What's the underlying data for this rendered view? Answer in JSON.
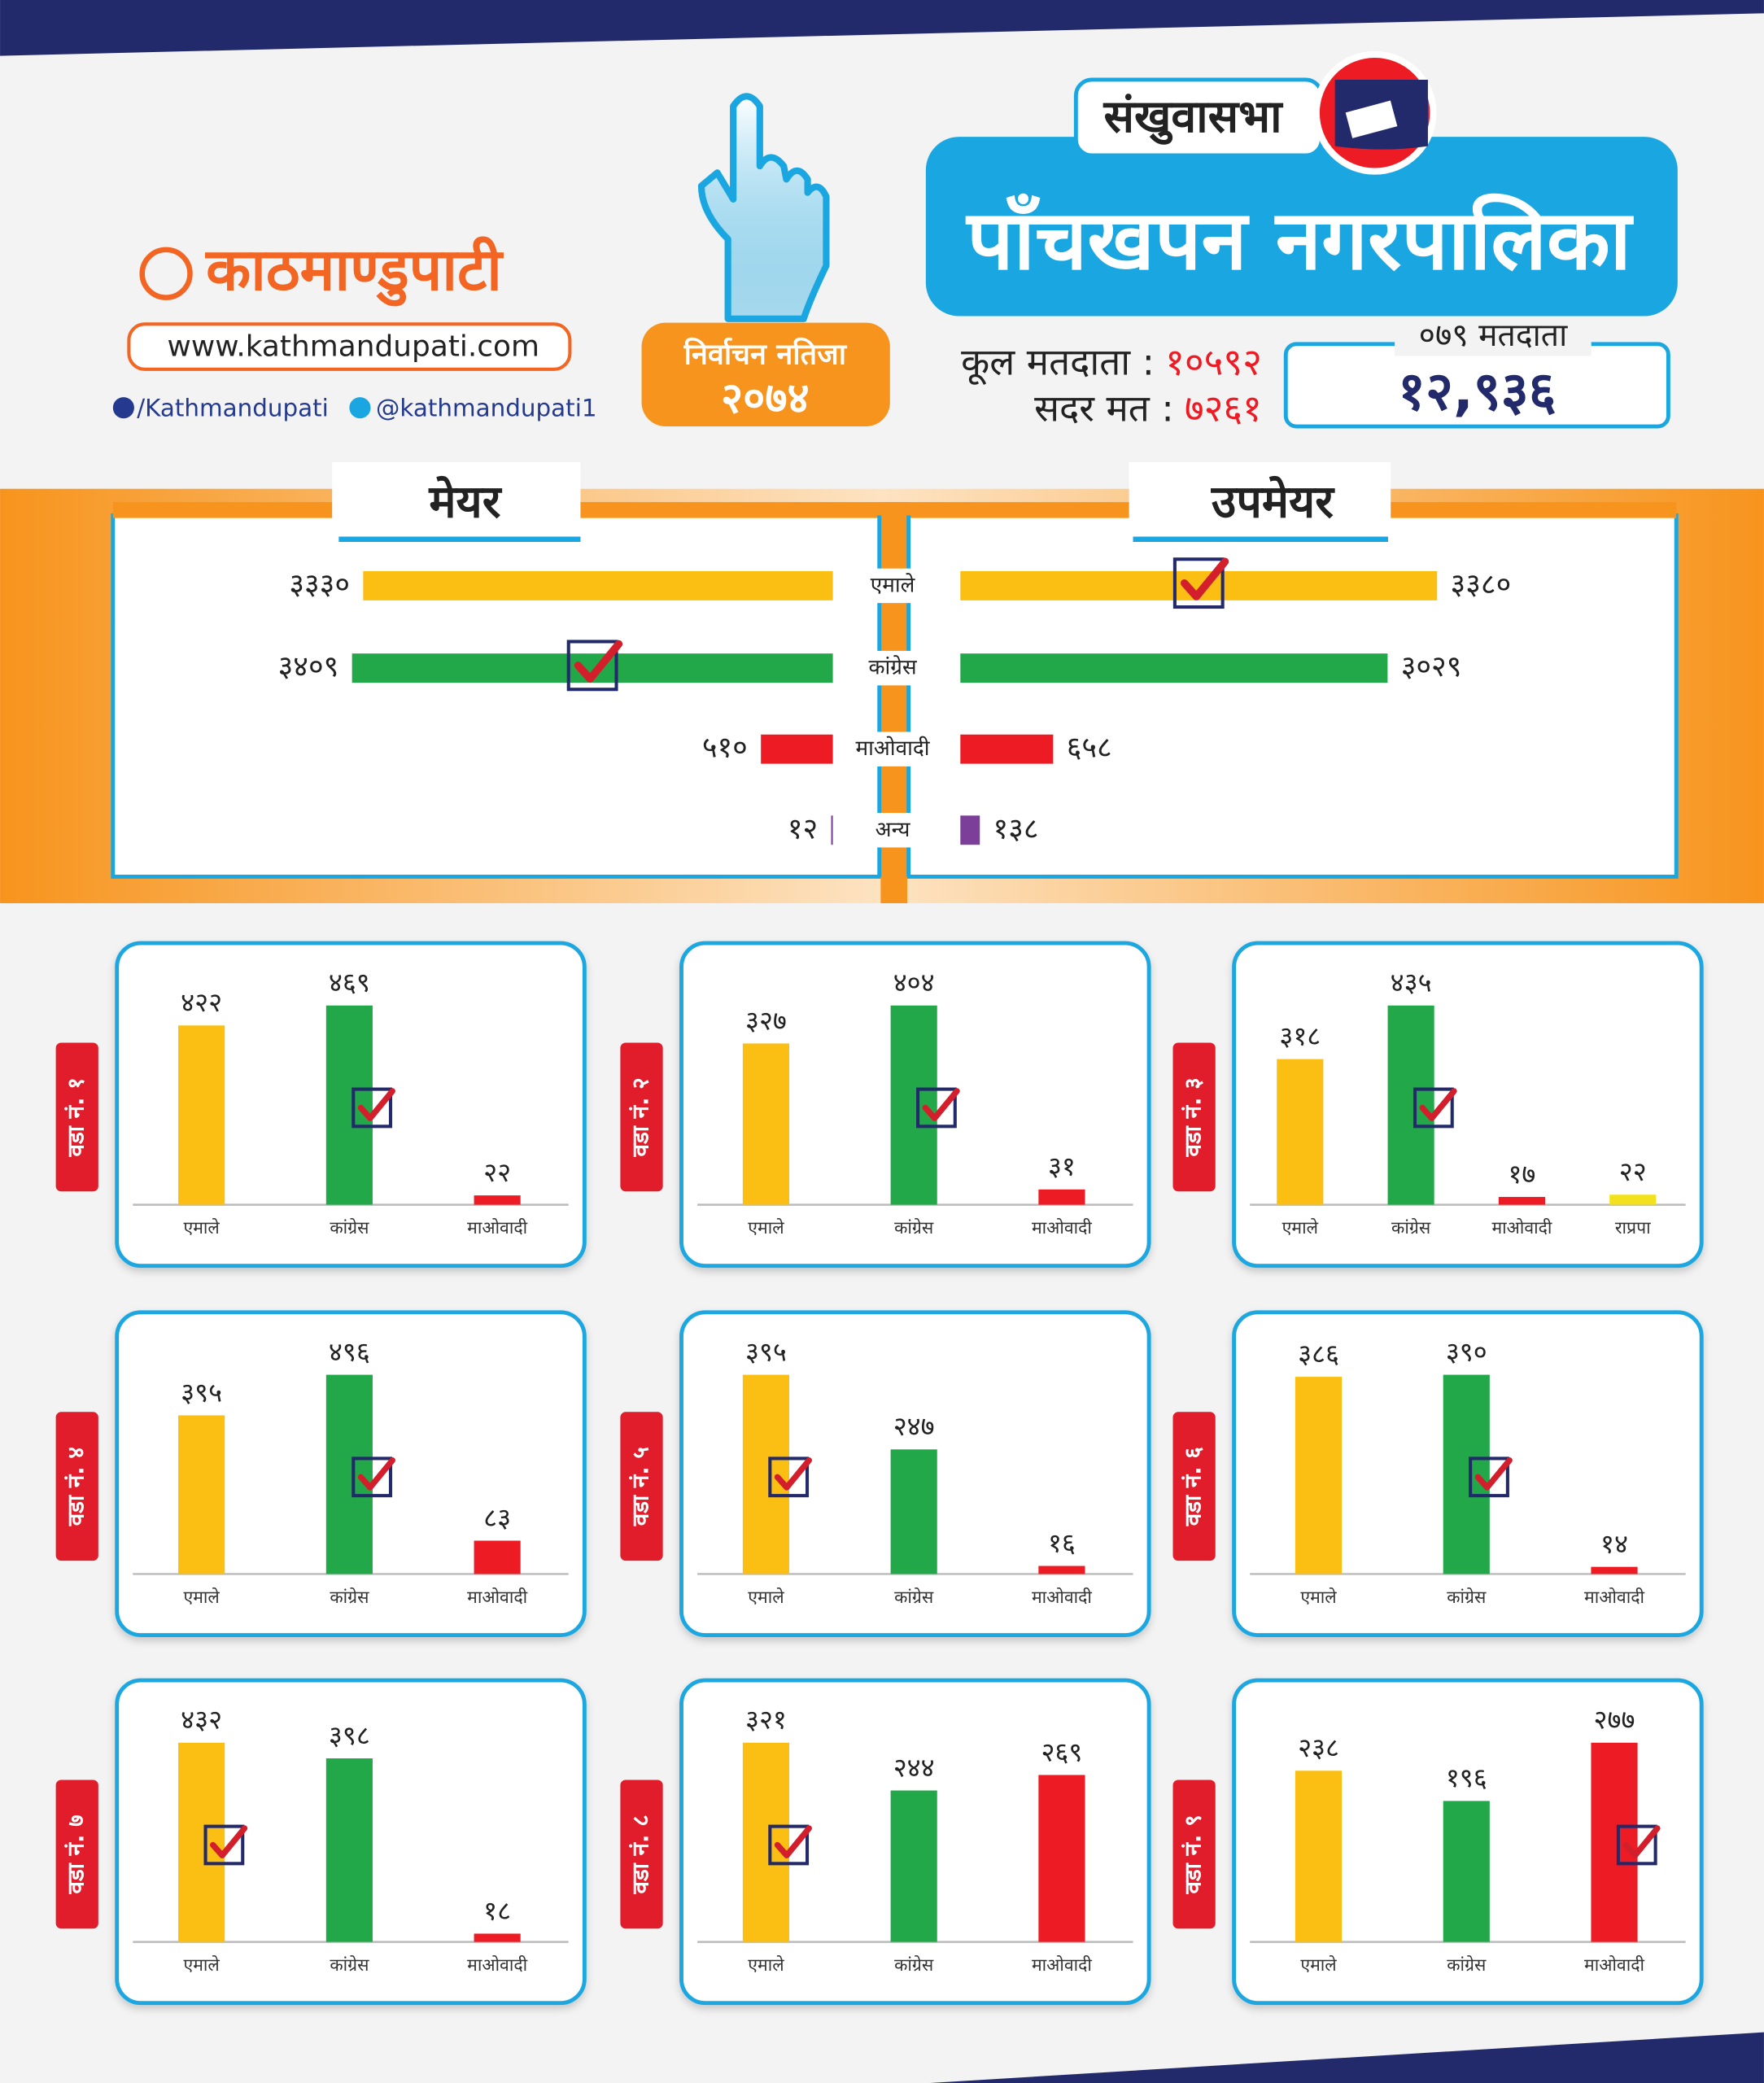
{
  "header": {
    "logo": "काठमाण्डुपाटी",
    "website": "www.kathmandupati.com",
    "facebook": "/Kathmandupati",
    "twitter": "@kathmandupati1",
    "district": "संखुवासभा",
    "municipality": "पाँचखपन नगरपालिका",
    "badge_title": "निर्वाचन नतिजा",
    "badge_year": "२०७४",
    "total_voters_label": "कूल मतदाता :",
    "total_voters": "१०५९२",
    "valid_votes_label": "सदर मत :",
    "valid_votes": "७२६१",
    "voters_079_label": "०७९ मतदाता",
    "voters_079": "१२,९३६"
  },
  "chart_data": [
    {
      "type": "butterfly",
      "categories": [
        "एमाले",
        "कांग्रेस",
        "माओवादी",
        "अन्य"
      ],
      "colors": [
        "#fbbf14",
        "#23a849",
        "#ed1c24",
        "#7b3f99"
      ],
      "series": [
        {
          "name": "मेयर",
          "values": [
            3330,
            3409,
            510,
            12
          ],
          "value_labels": [
            "३३३०",
            "३४०९",
            "५१०",
            "१२"
          ]
        },
        {
          "name": "उपमेयर",
          "values": [
            3380,
            3029,
            658,
            138
          ],
          "value_labels": [
            "३३८०",
            "३०२९",
            "६५८",
            "१३८"
          ]
        }
      ]
    },
    {
      "type": "bar",
      "title": "वडा नं. १",
      "categories": [
        "एमाले",
        "कांग्रेस",
        "माओवादी"
      ],
      "colors": [
        "#fbbf14",
        "#23a849",
        "#ed1c24"
      ],
      "values": [
        422,
        469,
        22
      ],
      "value_labels": [
        "४२२",
        "४६९",
        "२२"
      ]
    },
    {
      "type": "bar",
      "title": "वडा नं. २",
      "categories": [
        "एमाले",
        "कांग्रेस",
        "माओवादी"
      ],
      "colors": [
        "#fbbf14",
        "#23a849",
        "#ed1c24"
      ],
      "values": [
        327,
        404,
        31
      ],
      "value_labels": [
        "३२७",
        "४०४",
        "३१"
      ]
    },
    {
      "type": "bar",
      "title": "वडा नं. ३",
      "categories": [
        "एमाले",
        "कांग्रेस",
        "माओवादी",
        "राप्रपा"
      ],
      "colors": [
        "#fbbf14",
        "#23a849",
        "#ed1c24",
        "#f2e21d"
      ],
      "values": [
        318,
        435,
        17,
        22
      ],
      "value_labels": [
        "३१८",
        "४३५",
        "१७",
        "२२"
      ]
    },
    {
      "type": "bar",
      "title": "वडा नं. ४",
      "categories": [
        "एमाले",
        "कांग्रेस",
        "माओवादी"
      ],
      "colors": [
        "#fbbf14",
        "#23a849",
        "#ed1c24"
      ],
      "values": [
        395,
        496,
        83
      ],
      "value_labels": [
        "३९५",
        "४९६",
        "८३"
      ]
    },
    {
      "type": "bar",
      "title": "वडा नं. ५",
      "categories": [
        "एमाले",
        "कांग्रेस",
        "माओवादी"
      ],
      "colors": [
        "#fbbf14",
        "#23a849",
        "#ed1c24"
      ],
      "values": [
        395,
        247,
        16
      ],
      "value_labels": [
        "३९५",
        "२४७",
        "१६"
      ]
    },
    {
      "type": "bar",
      "title": "वडा नं. ६",
      "categories": [
        "एमाले",
        "कांग्रेस",
        "माओवादी"
      ],
      "colors": [
        "#fbbf14",
        "#23a849",
        "#ed1c24"
      ],
      "values": [
        386,
        390,
        14
      ],
      "value_labels": [
        "३८६",
        "३९०",
        "१४"
      ]
    },
    {
      "type": "bar",
      "title": "वडा नं. ७",
      "categories": [
        "एमाले",
        "कांग्रेस",
        "माओवादी"
      ],
      "colors": [
        "#fbbf14",
        "#23a849",
        "#ed1c24"
      ],
      "values": [
        432,
        398,
        18
      ],
      "value_labels": [
        "४३२",
        "३९८",
        "१८"
      ]
    },
    {
      "type": "bar",
      "title": "वडा नं. ८",
      "categories": [
        "एमाले",
        "कांग्रेस",
        "माओवादी"
      ],
      "colors": [
        "#fbbf14",
        "#23a849",
        "#ed1c24"
      ],
      "values": [
        321,
        244,
        269
      ],
      "value_labels": [
        "३२१",
        "२४४",
        "२६९"
      ]
    },
    {
      "type": "bar",
      "title": "वडा नं. ९",
      "categories": [
        "एमाले",
        "कांग्रेस",
        "माओवादी"
      ],
      "colors": [
        "#fbbf14",
        "#23a849",
        "#ed1c24"
      ],
      "values": [
        238,
        196,
        277
      ],
      "value_labels": [
        "२३८",
        "१९६",
        "२७७"
      ]
    }
  ]
}
